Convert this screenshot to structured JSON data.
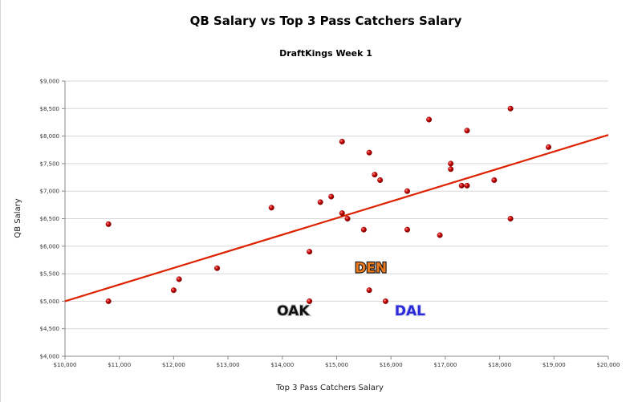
{
  "chart_data": {
    "type": "scatter",
    "title": "QB Salary vs Top 3 Pass Catchers Salary",
    "subtitle": "DraftKings Week 1",
    "xlabel": "Top 3 Pass Catchers Salary",
    "ylabel": "QB Salary",
    "xlim": [
      10000,
      20000
    ],
    "ylim": [
      4000,
      9000
    ],
    "x_ticks": [
      10000,
      11000,
      12000,
      13000,
      14000,
      15000,
      16000,
      17000,
      18000,
      19000,
      20000
    ],
    "x_tick_labels": [
      "$10,000",
      "$11,000",
      "$12,000",
      "$13,000",
      "$14,000",
      "$15,000",
      "$16,000",
      "$17,000",
      "$18,000",
      "$19,000",
      "$20,000"
    ],
    "y_ticks": [
      4000,
      4500,
      5000,
      5500,
      6000,
      6500,
      7000,
      7500,
      8000,
      8500,
      9000
    ],
    "y_tick_labels": [
      "$4,000",
      "$4,500",
      "$5,000",
      "$5,500",
      "$6,000",
      "$6,500",
      "$7,000",
      "$7,500",
      "$8,000",
      "$8,500",
      "$9,000"
    ],
    "grid": "horizontal",
    "marker_color": "#cc0000",
    "trendline": {
      "color": "#dd2200",
      "points": [
        [
          10000,
          5000
        ],
        [
          20000,
          8020
        ]
      ]
    },
    "points": [
      {
        "x": 10800,
        "y": 6400
      },
      {
        "x": 10800,
        "y": 5000
      },
      {
        "x": 12000,
        "y": 5200
      },
      {
        "x": 12100,
        "y": 5400
      },
      {
        "x": 12800,
        "y": 5600
      },
      {
        "x": 13800,
        "y": 6700
      },
      {
        "x": 14500,
        "y": 5900
      },
      {
        "x": 14500,
        "y": 5000
      },
      {
        "x": 14700,
        "y": 6800
      },
      {
        "x": 14900,
        "y": 6900
      },
      {
        "x": 15100,
        "y": 7900
      },
      {
        "x": 15100,
        "y": 6600
      },
      {
        "x": 15200,
        "y": 6500
      },
      {
        "x": 15500,
        "y": 6300
      },
      {
        "x": 15600,
        "y": 7700
      },
      {
        "x": 15600,
        "y": 5200
      },
      {
        "x": 15700,
        "y": 7300
      },
      {
        "x": 15800,
        "y": 7200
      },
      {
        "x": 15900,
        "y": 5000
      },
      {
        "x": 16300,
        "y": 7000
      },
      {
        "x": 16300,
        "y": 6300
      },
      {
        "x": 16700,
        "y": 8300
      },
      {
        "x": 16900,
        "y": 6200
      },
      {
        "x": 17100,
        "y": 7500
      },
      {
        "x": 17100,
        "y": 7400
      },
      {
        "x": 17300,
        "y": 7100
      },
      {
        "x": 17400,
        "y": 8100
      },
      {
        "x": 17400,
        "y": 7100
      },
      {
        "x": 17900,
        "y": 7200
      },
      {
        "x": 18200,
        "y": 8500
      },
      {
        "x": 18200,
        "y": 6500
      },
      {
        "x": 18900,
        "y": 7800
      }
    ],
    "annotations": [
      {
        "text": "DEN",
        "x": 15630,
        "y": 5520,
        "fill": "#e8791e",
        "stroke": "#111111"
      },
      {
        "text": "OAK",
        "x": 14200,
        "y": 4740,
        "fill": "#111111",
        "stroke": "#c8c8c8"
      },
      {
        "text": "DAL",
        "x": 16350,
        "y": 4740,
        "fill": "#2a2ad8",
        "stroke": "#d8d8ee"
      }
    ]
  }
}
